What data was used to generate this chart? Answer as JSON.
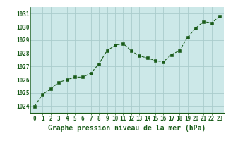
{
  "x": [
    0,
    1,
    2,
    3,
    4,
    5,
    6,
    7,
    8,
    9,
    10,
    11,
    12,
    13,
    14,
    15,
    16,
    17,
    18,
    19,
    20,
    21,
    22,
    23
  ],
  "y": [
    1024.0,
    1024.9,
    1025.3,
    1025.8,
    1026.0,
    1026.2,
    1026.2,
    1026.5,
    1027.2,
    1028.2,
    1028.6,
    1028.75,
    1028.2,
    1027.8,
    1027.65,
    1027.45,
    1027.35,
    1027.9,
    1028.2,
    1029.2,
    1029.9,
    1030.4,
    1030.3,
    1030.8
  ],
  "xlim": [
    -0.5,
    23.5
  ],
  "ylim": [
    1023.5,
    1031.5
  ],
  "yticks": [
    1024,
    1025,
    1026,
    1027,
    1028,
    1029,
    1030,
    1031
  ],
  "xticks": [
    0,
    1,
    2,
    3,
    4,
    5,
    6,
    7,
    8,
    9,
    10,
    11,
    12,
    13,
    14,
    15,
    16,
    17,
    18,
    19,
    20,
    21,
    22,
    23
  ],
  "line_color": "#1a5c1a",
  "marker_color": "#1a5c1a",
  "bg_color": "#cce8e8",
  "grid_color": "#aacccc",
  "xlabel": "Graphe pression niveau de la mer (hPa)",
  "tick_fontsize": 5.5,
  "label_fontsize": 7.0,
  "fig_bg": "#ffffff"
}
